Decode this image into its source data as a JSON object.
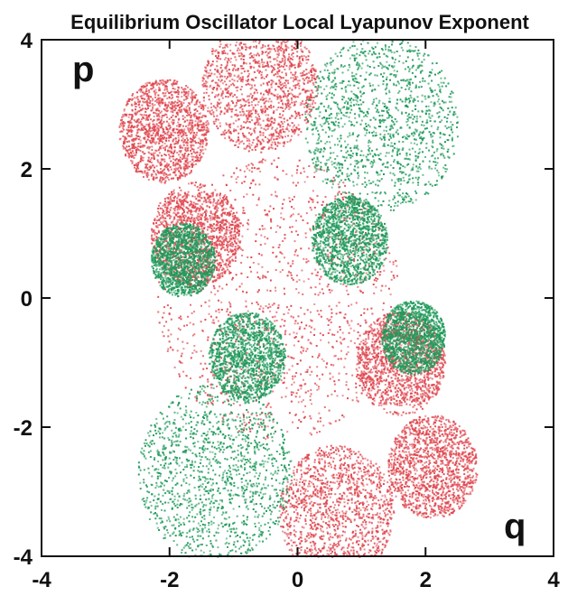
{
  "chart_data": {
    "type": "scatter",
    "title": "Equilibrium Oscillator Local Lyapunov Exponent",
    "xlabel": "q",
    "ylabel": "p",
    "xlim": [
      -4,
      4
    ],
    "ylim": [
      -4,
      4
    ],
    "xticks": [
      "-4",
      "-2",
      "0",
      "2",
      "4"
    ],
    "yticks": [
      "4",
      "2",
      "0",
      "-2",
      "-4"
    ],
    "grid": false,
    "legend": "none",
    "colors": {
      "positive": "#e04850",
      "negative": "#1f9a5a",
      "frame": "#111111"
    },
    "description_of_pattern": "",
    "series": [
      {
        "color": "#e04850",
        "regions": [
          {
            "center": [
              -0.3,
              0.0
            ],
            "radius": 1.9
          },
          {
            "center": [
              -1.6,
              1.0
            ],
            "radius": 0.7
          },
          {
            "center": [
              1.6,
              -1.0
            ],
            "radius": 0.7
          },
          {
            "center": [
              -0.6,
              3.3
            ],
            "radius": 0.9
          },
          {
            "center": [
              0.6,
              -3.3
            ],
            "radius": 0.9
          },
          {
            "center": [
              -2.1,
              2.6
            ],
            "radius": 0.7
          },
          {
            "center": [
              2.1,
              -2.6
            ],
            "radius": 0.7
          }
        ]
      },
      {
        "color": "#1f9a5a",
        "regions": [
          {
            "center": [
              1.3,
              2.7
            ],
            "radius": 1.2
          },
          {
            "center": [
              -1.3,
              -2.7
            ],
            "radius": 1.2
          },
          {
            "center": [
              0.8,
              0.9
            ],
            "radius": 0.6
          },
          {
            "center": [
              -0.8,
              -0.9
            ],
            "radius": 0.6
          },
          {
            "center": [
              -1.8,
              0.6
            ],
            "radius": 0.5
          },
          {
            "center": [
              1.8,
              -0.6
            ],
            "radius": 0.5
          }
        ]
      }
    ],
    "gaps_p": [
      1.7,
      0.0,
      -1.7
    ]
  }
}
